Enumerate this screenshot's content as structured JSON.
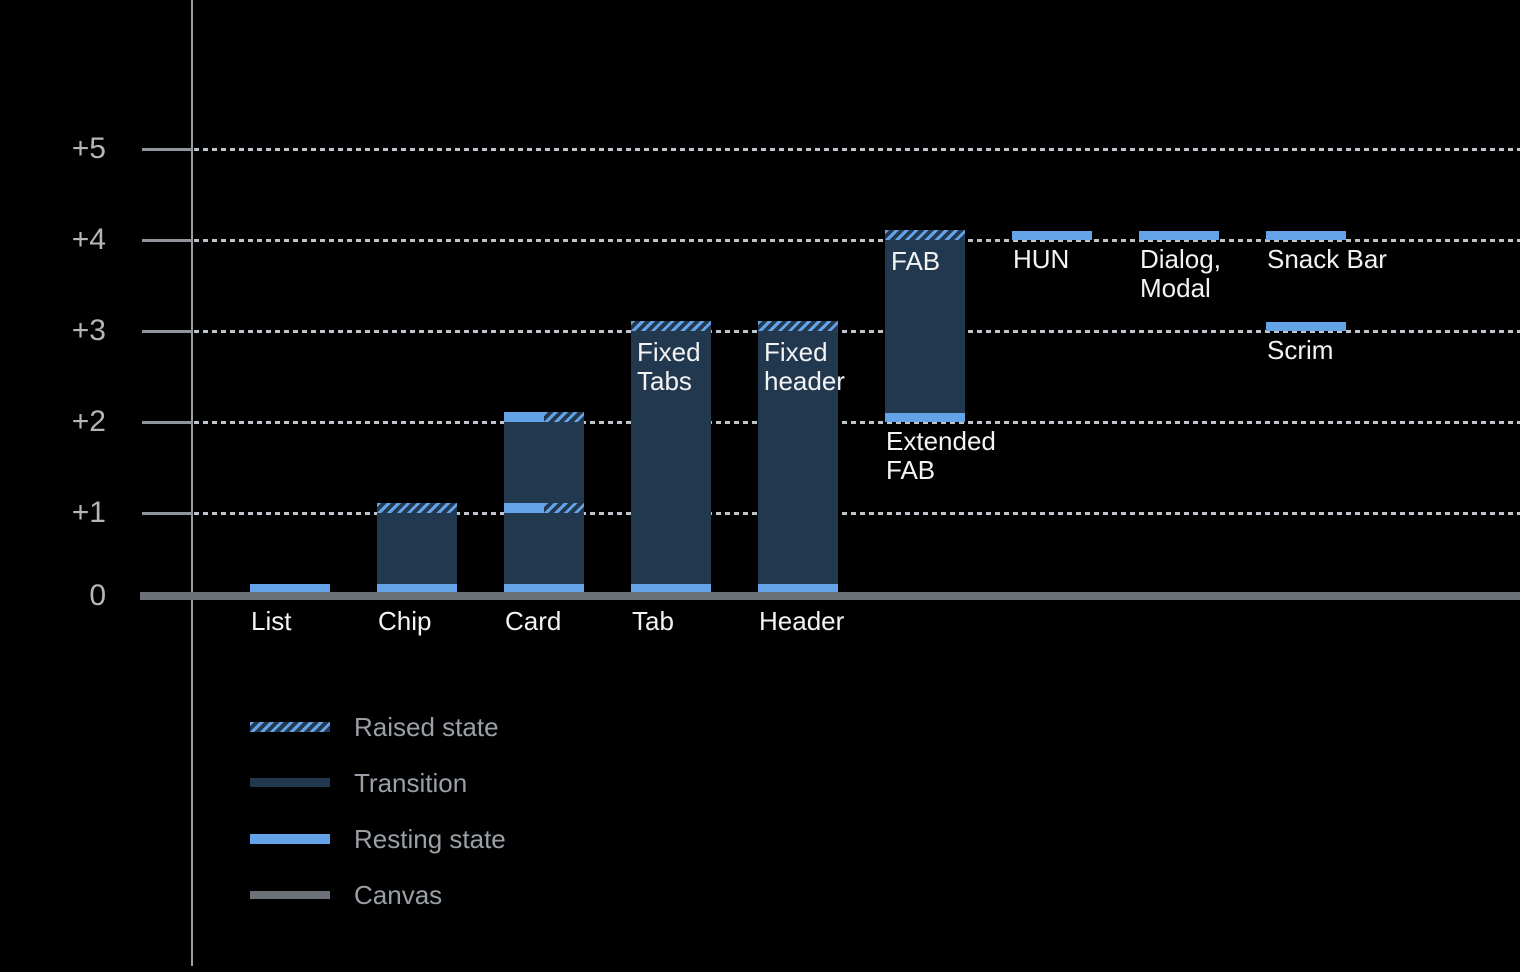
{
  "chart_data": {
    "type": "bar",
    "title": "",
    "theme": "dark",
    "y_axis": {
      "min": 0,
      "max": 5,
      "ticks": [
        {
          "value": 5,
          "label": "+5"
        },
        {
          "value": 4,
          "label": "+4"
        },
        {
          "value": 3,
          "label": "+3"
        },
        {
          "value": 2,
          "label": "+2"
        },
        {
          "value": 1,
          "label": "+1"
        },
        {
          "value": 0,
          "label": "0"
        }
      ],
      "gridlines": "dotted"
    },
    "bars": [
      {
        "name": "List",
        "col": 0,
        "base_label": "List",
        "segments": [
          {
            "style": "resting",
            "at": 0
          }
        ]
      },
      {
        "name": "Chip",
        "col": 1,
        "base_label": "Chip",
        "segments": [
          {
            "style": "transition",
            "from": 0,
            "to": 1
          },
          {
            "style": "raised",
            "at": 1
          },
          {
            "style": "resting",
            "at": 0
          }
        ]
      },
      {
        "name": "Card",
        "col": 2,
        "base_label": "Card",
        "segments": [
          {
            "style": "transition",
            "from": 0,
            "to": 2
          },
          {
            "style": "resting-raised",
            "at": 2
          },
          {
            "style": "resting-raised",
            "at": 1
          },
          {
            "style": "resting",
            "at": 0
          }
        ]
      },
      {
        "name": "Tab",
        "col": 3,
        "base_label": "Tab",
        "inside_label": {
          "lines": [
            "Fixed",
            "Tabs"
          ],
          "at": 3
        },
        "segments": [
          {
            "style": "transition",
            "from": 0,
            "to": 3
          },
          {
            "style": "raised",
            "at": 3
          },
          {
            "style": "resting",
            "at": 0
          }
        ]
      },
      {
        "name": "Header",
        "col": 4,
        "base_label": "Header",
        "inside_label": {
          "lines": [
            "Fixed",
            "header"
          ],
          "at": 3
        },
        "segments": [
          {
            "style": "transition",
            "from": 0,
            "to": 3
          },
          {
            "style": "raised",
            "at": 3
          },
          {
            "style": "resting",
            "at": 0
          }
        ]
      },
      {
        "name": "FAB",
        "col": 5,
        "inside_label": {
          "lines": [
            "FAB"
          ],
          "at": 4
        },
        "under_label": {
          "lines": [
            "Extended",
            "FAB"
          ],
          "at": 2
        },
        "segments": [
          {
            "style": "transition",
            "from": 2,
            "to": 4
          },
          {
            "style": "raised",
            "at": 4
          },
          {
            "style": "resting",
            "at": 2
          }
        ]
      },
      {
        "name": "HUN",
        "col": 6,
        "under_label": {
          "lines": [
            "HUN"
          ],
          "at": 4
        },
        "segments": [
          {
            "style": "resting",
            "at": 4
          }
        ]
      },
      {
        "name": "Dialog, Modal",
        "col": 7,
        "under_label": {
          "lines": [
            "Dialog,",
            "Modal"
          ],
          "at": 4
        },
        "segments": [
          {
            "style": "resting",
            "at": 4
          }
        ]
      },
      {
        "name": "Snack Bar",
        "col": 8,
        "under_label": {
          "lines": [
            "Snack Bar"
          ],
          "at": 4
        },
        "segments": [
          {
            "style": "resting",
            "at": 4
          }
        ]
      },
      {
        "name": "Scrim",
        "col": 8,
        "under_label": {
          "lines": [
            "Scrim"
          ],
          "at": 3
        },
        "segments": [
          {
            "style": "resting",
            "at": 3
          }
        ]
      }
    ],
    "legend": [
      {
        "label": "Raised state",
        "style": "raised"
      },
      {
        "label": "Transition",
        "style": "transition"
      },
      {
        "label": "Resting state",
        "style": "resting"
      },
      {
        "label": "Canvas",
        "style": "canvas"
      }
    ],
    "colors": {
      "background": "#000000",
      "resting_state": "#64a3e8",
      "transition": "#22384f",
      "canvas": "#6b7177",
      "gridline": "#bec4c9",
      "axis": "#9aa0a6",
      "axis_label_text": "#b4b7ba",
      "bar_label_text": "#f2f3f4",
      "legend_text": "#9aa0a6"
    }
  }
}
